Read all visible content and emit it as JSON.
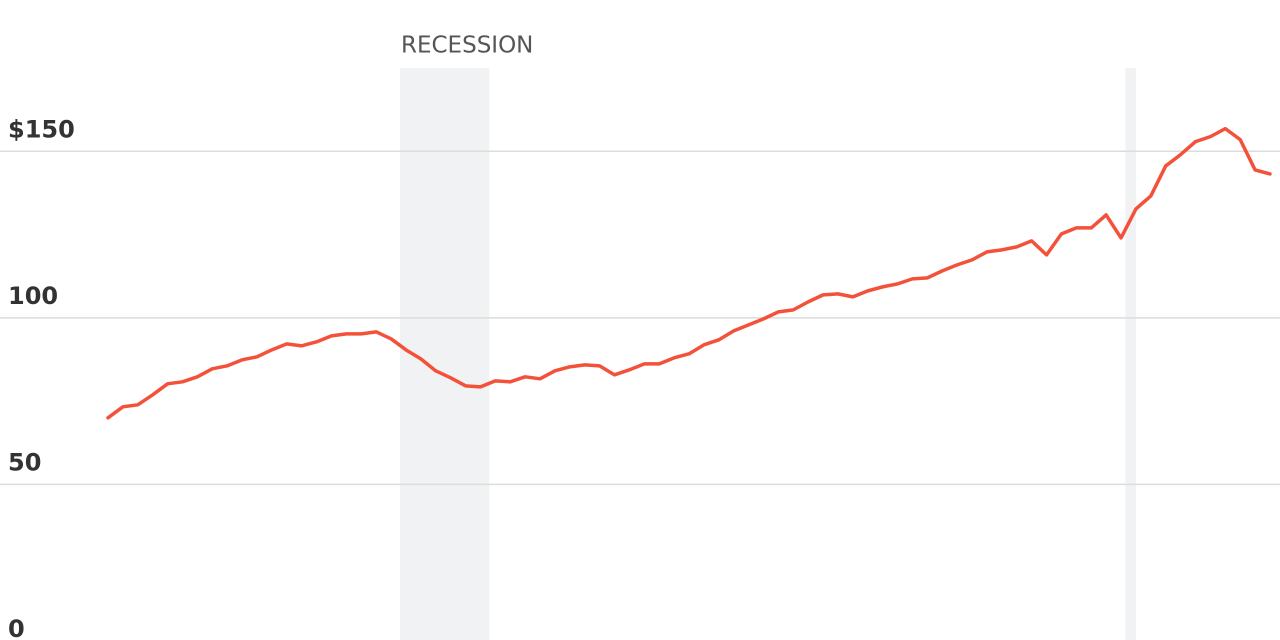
{
  "chart_data": {
    "type": "line",
    "categories": [
      null,
      null,
      null,
      null,
      null,
      null,
      null,
      null,
      null,
      null,
      null,
      null,
      null,
      null,
      null,
      null,
      null,
      null,
      null,
      null,
      null,
      null,
      null,
      null,
      null,
      null,
      null,
      null,
      null,
      null,
      null,
      null,
      null,
      null,
      null,
      null,
      null,
      null,
      null,
      null,
      null,
      null,
      null,
      null,
      null,
      null,
      null,
      null,
      null,
      null,
      null,
      null,
      null,
      null,
      null,
      null,
      null,
      null,
      null,
      null,
      null,
      null,
      null,
      null,
      null,
      null,
      null,
      null,
      null,
      null,
      null,
      null,
      null,
      null,
      null,
      null,
      null,
      null,
      null
    ],
    "values": [
      70.0,
      73.3,
      73.9,
      76.9,
      80.2,
      80.8,
      82.3,
      84.7,
      85.6,
      87.4,
      88.3,
      90.4,
      92.2,
      91.6,
      92.8,
      94.6,
      95.2,
      95.2,
      95.8,
      93.7,
      90.4,
      87.7,
      84.1,
      82.0,
      79.6,
      79.3,
      81.1,
      80.8,
      82.3,
      81.7,
      84.1,
      85.3,
      85.9,
      85.6,
      82.9,
      84.4,
      86.2,
      86.2,
      88.0,
      89.2,
      91.9,
      93.4,
      96.1,
      97.9,
      99.7,
      101.8,
      102.4,
      104.8,
      106.9,
      107.2,
      106.3,
      108.1,
      109.3,
      110.2,
      111.7,
      112.0,
      114.1,
      115.9,
      117.4,
      119.8,
      120.4,
      121.3,
      123.1,
      118.9,
      125.2,
      127.0,
      127.0,
      130.9,
      124.0,
      132.7,
      136.6,
      145.6,
      149.0,
      152.9,
      154.4,
      156.8,
      153.5,
      144.4,
      143.2
    ],
    "color": "#f4513a",
    "shaded_ranges": [
      {
        "start": 19.6,
        "end": 25.6,
        "label": "RECESSION"
      },
      {
        "start": 68.3,
        "end": 69.0
      }
    ],
    "shade_color": "#f1f2f4",
    "ylim": [
      0,
      175
    ],
    "yticks": [
      0,
      50,
      100,
      {
        "value": 150,
        "label": "$150"
      }
    ],
    "grid": true
  }
}
